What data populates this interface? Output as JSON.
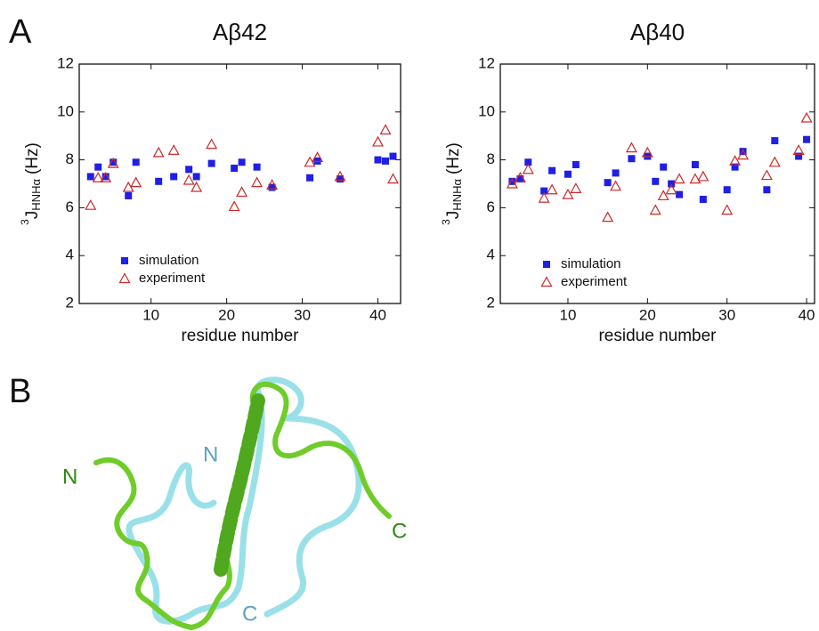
{
  "panel_labels": [
    "A",
    "B"
  ],
  "chart_data": [
    {
      "type": "scatter",
      "title": "Aβ42",
      "x_label": "residue number",
      "y_label": {
        "sup": "3",
        "main": "J",
        "sub": "HNHα",
        "unit": "(Hz)"
      },
      "x": [
        2,
        3,
        4,
        5,
        7,
        8,
        11,
        13,
        15,
        16,
        18,
        21,
        22,
        24,
        26,
        31,
        32,
        35,
        40,
        41,
        42
      ],
      "series": [
        {
          "name": "simulation",
          "color": "#1f1fe6",
          "marker": "square",
          "values": [
            7.3,
            7.7,
            7.3,
            7.9,
            6.5,
            7.9,
            7.1,
            7.3,
            7.6,
            7.3,
            7.85,
            7.65,
            7.9,
            7.7,
            6.85,
            7.25,
            7.95,
            7.2,
            8.0,
            7.95,
            8.15
          ]
        },
        {
          "name": "experiment",
          "color": "#cc2a2a",
          "marker": "triangle",
          "values": [
            6.1,
            7.25,
            7.25,
            7.85,
            6.85,
            7.05,
            8.3,
            8.4,
            7.15,
            6.85,
            8.65,
            6.05,
            6.65,
            7.05,
            6.95,
            7.9,
            8.1,
            7.3,
            8.75,
            9.25,
            7.2
          ]
        }
      ],
      "xlim": [
        0.5,
        43
      ],
      "xticks": [
        10,
        20,
        30,
        40
      ],
      "ylim": [
        2,
        12
      ],
      "yticks": [
        2,
        4,
        6,
        8,
        10,
        12
      ]
    },
    {
      "type": "scatter",
      "title": "Aβ40",
      "x_label": "residue number",
      "y_label": {
        "sup": "3",
        "main": "J",
        "sub": "HNHα",
        "unit": "(Hz)"
      },
      "x": [
        3,
        4,
        5,
        7,
        8,
        10,
        11,
        15,
        16,
        18,
        20,
        21,
        22,
        23,
        24,
        26,
        27,
        30,
        31,
        32,
        35,
        36,
        39,
        40
      ],
      "series": [
        {
          "name": "simulation",
          "color": "#1f1fe6",
          "marker": "square",
          "values": [
            7.1,
            7.2,
            7.9,
            6.7,
            7.55,
            7.4,
            7.8,
            7.05,
            7.45,
            8.05,
            8.15,
            7.1,
            7.7,
            7.0,
            6.55,
            7.8,
            6.35,
            6.75,
            7.7,
            8.35,
            6.75,
            8.8,
            8.15,
            8.85
          ]
        },
        {
          "name": "experiment",
          "color": "#cc2a2a",
          "marker": "triangle",
          "values": [
            7.0,
            7.25,
            7.6,
            6.4,
            6.75,
            6.55,
            6.8,
            5.6,
            6.9,
            8.5,
            8.3,
            5.9,
            6.5,
            6.75,
            7.2,
            7.2,
            7.3,
            5.9,
            7.95,
            8.2,
            7.35,
            7.9,
            8.4,
            9.75
          ]
        }
      ],
      "xlim": [
        1.5,
        41
      ],
      "xticks": [
        10,
        20,
        30,
        40
      ],
      "ylim": [
        2,
        12
      ],
      "yticks": [
        2,
        4,
        6,
        8,
        10,
        12
      ]
    }
  ],
  "structure": {
    "labels": [
      "N",
      "N",
      "C",
      "C"
    ]
  }
}
